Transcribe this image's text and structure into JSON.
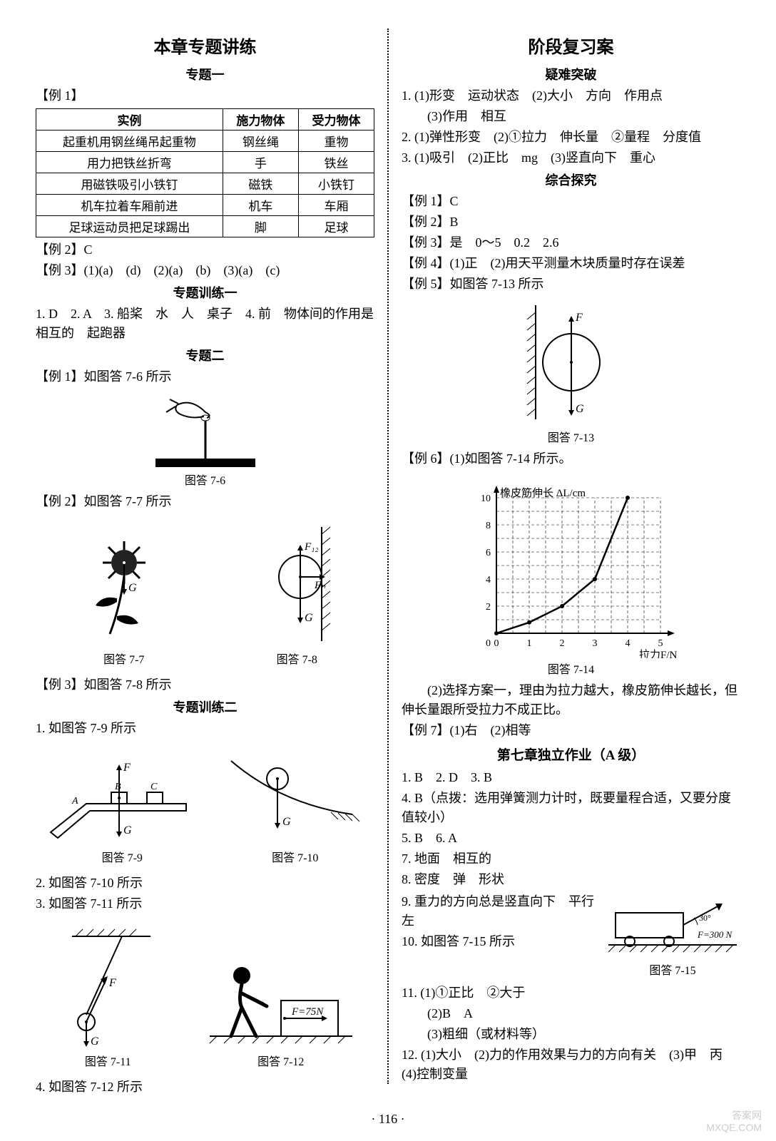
{
  "page_number": "· 116 ·",
  "left": {
    "title": "本章专题讲练",
    "topic1": "专题一",
    "ex1_label": "【例 1】",
    "table_headers": [
      "实例",
      "施力物体",
      "受力物体"
    ],
    "table_rows": [
      [
        "起重机用钢丝绳吊起重物",
        "钢丝绳",
        "重物"
      ],
      [
        "用力把铁丝折弯",
        "手",
        "铁丝"
      ],
      [
        "用磁铁吸引小铁钉",
        "磁铁",
        "小铁钉"
      ],
      [
        "机车拉着车厢前进",
        "机车",
        "车厢"
      ],
      [
        "足球运动员把足球踢出",
        "脚",
        "足球"
      ]
    ],
    "ex2": "【例 2】C",
    "ex3": "【例 3】(1)(a)　(d)　(2)(a)　(b)　(3)(a)　(c)",
    "train1_title": "专题训练一",
    "train1_line1": "1. D　2. A　3. 船桨　水　人　桌子　4. 前　物体间的作用是相互的　起跑器",
    "topic2": "专题二",
    "ex1b": "【例 1】如图答 7-6 所示",
    "cap76": "图答 7-6",
    "ex2b": "【例 2】如图答 7-7 所示",
    "cap77": "图答 7-7",
    "cap78": "图答 7-8",
    "ex3b": "【例 3】如图答 7-8 所示",
    "train2_title": "专题训练二",
    "train2_q1": "1. 如图答 7-9 所示",
    "cap79": "图答 7-9",
    "cap710": "图答 7-10",
    "train2_q2": "2. 如图答 7-10 所示",
    "train2_q3": "3. 如图答 7-11 所示",
    "cap711": "图答 7-11",
    "cap712": "图答 7-12",
    "train2_q4": "4. 如图答 7-12 所示",
    "f75n": "F=75N"
  },
  "right": {
    "title": "阶段复习案",
    "sub1": "疑难突破",
    "q1": "1. (1)形变　运动状态　(2)大小　方向　作用点",
    "q1b": "(3)作用　相互",
    "q2": "2. (1)弹性形变　(2)①拉力　伸长量　②量程　分度值",
    "q3": "3. (1)吸引　(2)正比　mg　(3)竖直向下　重心",
    "sub2": "综合探究",
    "ex1": "【例 1】C",
    "ex2": "【例 2】B",
    "ex3": "【例 3】是　0～5　0.2　2.6",
    "ex4": "【例 4】(1)正　(2)用天平测量木块质量时存在误差",
    "ex5": "【例 5】如图答 7-13 所示",
    "cap713": "图答 7-13",
    "ex6": "【例 6】(1)如图答 7-14 所示。",
    "chart": {
      "x_label": "拉力F/N",
      "y_label": "橡皮筋伸长 ΔL/cm",
      "x_ticks": [
        0,
        1,
        2,
        3,
        4,
        5
      ],
      "y_ticks": [
        0,
        2,
        4,
        6,
        8,
        10
      ],
      "points": [
        [
          0,
          0
        ],
        [
          1,
          0.8
        ],
        [
          2,
          2
        ],
        [
          3,
          4
        ],
        [
          4,
          10
        ]
      ],
      "line_color": "#000000",
      "grid_color": "#000000"
    },
    "cap714": "图答 7-14",
    "ex6b": "(2)选择方案一，理由为拉力越大，橡皮筋伸长越长，但伸长量跟所受拉力不成正比。",
    "ex7": "【例 7】(1)右　(2)相等",
    "hw_title": "第七章独立作业（A 级）",
    "hw1": "1. B　2. D　3. B",
    "hw4": "4. B（点拨：选用弹簧测力计时，既要量程合适，又要分度值较小）",
    "hw5": "5. B　6. A",
    "hw7": "7. 地面　相互的",
    "hw8": "8. 密度　弹　形状",
    "hw9": "9. 重力的方向总是竖直向下　平行　左",
    "hw10": "10. 如图答 7-15 所示",
    "cap715": "图答 7-15",
    "f300n": "F=300 N",
    "hw11a": "11. (1)①正比　②大于",
    "hw11b": "(2)B　A",
    "hw11c": "(3)粗细（或材料等）",
    "hw12": "12. (1)大小　(2)力的作用效果与力的方向有关　(3)甲　丙　(4)控制变量"
  },
  "watermark1": "答案网",
  "watermark2": "MXQE.COM"
}
